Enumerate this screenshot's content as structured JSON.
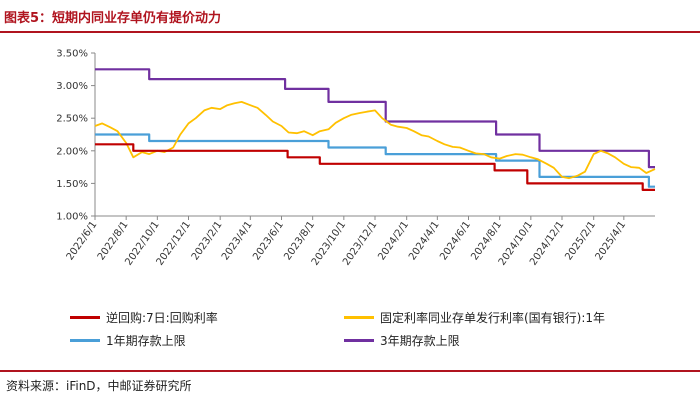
{
  "title": "图表5：短期内同业存单仍有提价动力",
  "source": "资料来源：iFinD，中邮证券研究所",
  "chart_data": {
    "type": "line",
    "x_type": "date",
    "x_ticks": [
      "2022/6/1",
      "2022/8/1",
      "2022/10/1",
      "2022/12/1",
      "2023/2/1",
      "2023/4/1",
      "2023/6/1",
      "2023/8/1",
      "2023/10/1",
      "2023/12/1",
      "2024/2/1",
      "2024/4/1",
      "2024/6/1",
      "2024/8/1",
      "2024/10/1",
      "2024/12/1",
      "2025/2/1",
      "2025/4/1"
    ],
    "y_ticks": [
      "1.00%",
      "1.50%",
      "2.00%",
      "2.50%",
      "3.00%",
      "3.50%"
    ],
    "ylim": [
      1.0,
      3.5
    ],
    "xlim": [
      "2022/6/1",
      "2025/6/1"
    ],
    "series": [
      {
        "name": "逆回购:7日:回购利率",
        "color": "#c00000",
        "step": true,
        "points": [
          [
            "2022/6/1",
            2.1
          ],
          [
            "2022/8/15",
            2.0
          ],
          [
            "2023/6/13",
            1.9
          ],
          [
            "2023/8/15",
            1.8
          ],
          [
            "2024/7/22",
            1.7
          ],
          [
            "2024/9/24",
            1.5
          ],
          [
            "2025/5/8",
            1.4
          ],
          [
            "2025/6/1",
            1.4
          ]
        ]
      },
      {
        "name": "1年期存款上限",
        "color": "#4a9fd8",
        "step": true,
        "points": [
          [
            "2022/6/1",
            2.25
          ],
          [
            "2022/9/15",
            2.15
          ],
          [
            "2023/6/8",
            2.15
          ],
          [
            "2023/9/1",
            2.05
          ],
          [
            "2023/12/22",
            1.95
          ],
          [
            "2024/7/25",
            1.85
          ],
          [
            "2024/10/18",
            1.6
          ],
          [
            "2025/5/20",
            1.45
          ],
          [
            "2025/6/1",
            1.45
          ]
        ]
      },
      {
        "name": "3年期存款上限",
        "color": "#7030a0",
        "step": true,
        "points": [
          [
            "2022/6/1",
            3.25
          ],
          [
            "2022/9/15",
            3.1
          ],
          [
            "2023/6/8",
            2.95
          ],
          [
            "2023/9/1",
            2.75
          ],
          [
            "2023/12/22",
            2.45
          ],
          [
            "2024/7/25",
            2.25
          ],
          [
            "2024/10/18",
            2.0
          ],
          [
            "2025/5/20",
            1.75
          ],
          [
            "2025/6/1",
            1.75
          ]
        ]
      },
      {
        "name": "固定利率同业存单发行利率(国有银行):1年",
        "color": "#ffc000",
        "step": false,
        "points": [
          [
            "2022/6/1",
            2.38
          ],
          [
            "2022/6/15",
            2.42
          ],
          [
            "2022/7/1",
            2.36
          ],
          [
            "2022/7/15",
            2.3
          ],
          [
            "2022/8/1",
            2.12
          ],
          [
            "2022/8/15",
            1.9
          ],
          [
            "2022/9/1",
            1.98
          ],
          [
            "2022/9/15",
            1.95
          ],
          [
            "2022/10/1",
            2.0
          ],
          [
            "2022/10/15",
            1.98
          ],
          [
            "2022/11/1",
            2.05
          ],
          [
            "2022/11/15",
            2.25
          ],
          [
            "2022/12/1",
            2.42
          ],
          [
            "2022/12/15",
            2.5
          ],
          [
            "2023/1/1",
            2.62
          ],
          [
            "2023/1/15",
            2.66
          ],
          [
            "2023/2/1",
            2.64
          ],
          [
            "2023/2/15",
            2.7
          ],
          [
            "2023/3/1",
            2.73
          ],
          [
            "2023/3/15",
            2.75
          ],
          [
            "2023/4/1",
            2.7
          ],
          [
            "2023/4/15",
            2.66
          ],
          [
            "2023/5/1",
            2.55
          ],
          [
            "2023/5/15",
            2.45
          ],
          [
            "2023/6/1",
            2.38
          ],
          [
            "2023/6/15",
            2.28
          ],
          [
            "2023/7/1",
            2.27
          ],
          [
            "2023/7/15",
            2.3
          ],
          [
            "2023/8/1",
            2.24
          ],
          [
            "2023/8/15",
            2.3
          ],
          [
            "2023/9/1",
            2.33
          ],
          [
            "2023/9/15",
            2.43
          ],
          [
            "2023/10/1",
            2.5
          ],
          [
            "2023/10/15",
            2.55
          ],
          [
            "2023/11/1",
            2.58
          ],
          [
            "2023/11/15",
            2.6
          ],
          [
            "2023/12/1",
            2.62
          ],
          [
            "2023/12/15",
            2.5
          ],
          [
            "2024/1/1",
            2.4
          ],
          [
            "2024/1/15",
            2.37
          ],
          [
            "2024/2/1",
            2.35
          ],
          [
            "2024/2/15",
            2.3
          ],
          [
            "2024/3/1",
            2.24
          ],
          [
            "2024/3/15",
            2.22
          ],
          [
            "2024/4/1",
            2.15
          ],
          [
            "2024/4/15",
            2.1
          ],
          [
            "2024/5/1",
            2.06
          ],
          [
            "2024/5/15",
            2.05
          ],
          [
            "2024/6/1",
            2.0
          ],
          [
            "2024/6/15",
            1.96
          ],
          [
            "2024/7/1",
            1.95
          ],
          [
            "2024/7/15",
            1.9
          ],
          [
            "2024/8/1",
            1.88
          ],
          [
            "2024/8/15",
            1.92
          ],
          [
            "2024/9/1",
            1.95
          ],
          [
            "2024/9/15",
            1.94
          ],
          [
            "2024/10/1",
            1.9
          ],
          [
            "2024/10/15",
            1.87
          ],
          [
            "2024/11/1",
            1.8
          ],
          [
            "2024/11/15",
            1.74
          ],
          [
            "2024/12/1",
            1.6
          ],
          [
            "2024/12/15",
            1.58
          ],
          [
            "2025/1/1",
            1.62
          ],
          [
            "2025/1/15",
            1.68
          ],
          [
            "2025/2/1",
            1.95
          ],
          [
            "2025/2/15",
            2.0
          ],
          [
            "2025/3/1",
            1.96
          ],
          [
            "2025/3/15",
            1.9
          ],
          [
            "2025/4/1",
            1.8
          ],
          [
            "2025/4/15",
            1.75
          ],
          [
            "2025/5/1",
            1.74
          ],
          [
            "2025/5/15",
            1.66
          ],
          [
            "2025/6/1",
            1.72
          ]
        ]
      }
    ]
  },
  "legend": [
    {
      "label": "逆回购:7日:回购利率",
      "color": "#c00000"
    },
    {
      "label": "固定利率同业存单发行利率(国有银行):1年",
      "color": "#ffc000"
    },
    {
      "label": "1年期存款上限",
      "color": "#4a9fd8"
    },
    {
      "label": "3年期存款上限",
      "color": "#7030a0"
    }
  ]
}
